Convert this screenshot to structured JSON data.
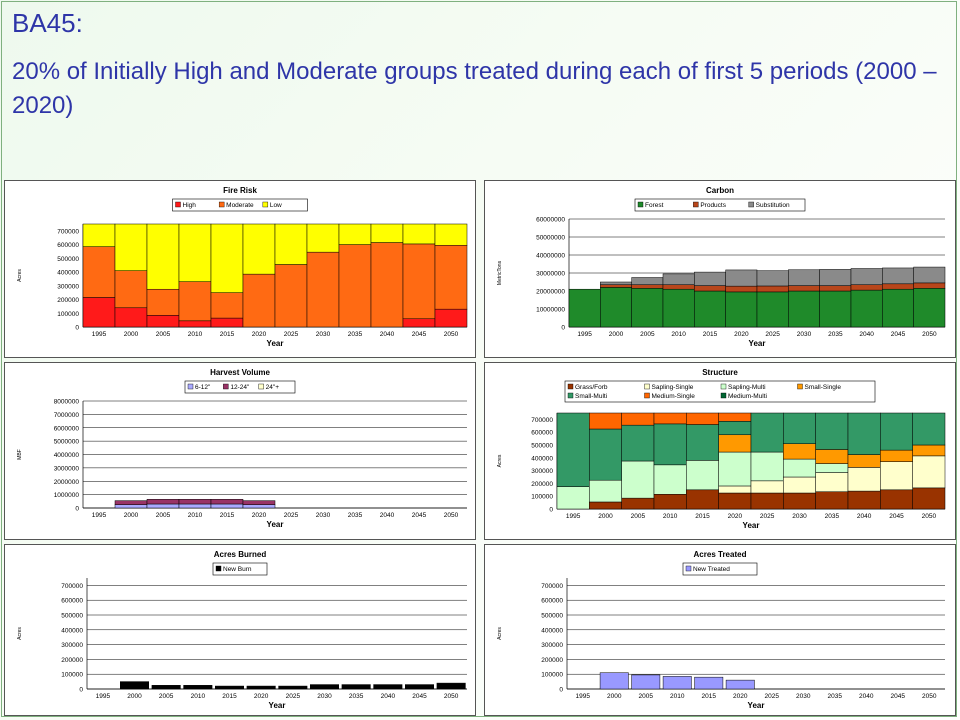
{
  "slide": {
    "title": "BA45:",
    "subtitle": "20% of Initially High and Moderate groups treated during each of first 5 periods (2000 – 2020)"
  },
  "chart_data": [
    {
      "id": "fire-risk",
      "type": "bar",
      "stacked": true,
      "title": "Fire Risk",
      "xlabel": "Year",
      "ylabel": "Acres",
      "ylim": [
        0,
        750000
      ],
      "yticks": [
        0,
        100000,
        200000,
        300000,
        400000,
        500000,
        600000,
        700000
      ],
      "grid": true,
      "legend": "top",
      "bar_gap": 0,
      "categories": [
        "1995",
        "2000",
        "2005",
        "2010",
        "2015",
        "2020",
        "2025",
        "2030",
        "2035",
        "2040",
        "2045",
        "2050"
      ],
      "series": [
        {
          "name": "High",
          "color": "#ff1a1a",
          "values": [
            215000,
            140000,
            85000,
            45000,
            65000,
            0,
            0,
            0,
            0,
            0,
            60000,
            130000
          ]
        },
        {
          "name": "Moderate",
          "color": "#ff6a13",
          "values": [
            370000,
            270000,
            190000,
            285000,
            185000,
            385000,
            455000,
            545000,
            600000,
            615000,
            545000,
            465000
          ]
        },
        {
          "name": "Low",
          "color": "#ffff00",
          "values": [
            165000,
            340000,
            475000,
            420000,
            500000,
            365000,
            295000,
            205000,
            150000,
            135000,
            145000,
            155000
          ]
        }
      ]
    },
    {
      "id": "carbon",
      "type": "bar",
      "stacked": true,
      "title": "Carbon",
      "xlabel": "Year",
      "ylabel": "MetricTons",
      "ylim": [
        0,
        60000000
      ],
      "yticks": [
        0,
        10000000,
        20000000,
        30000000,
        40000000,
        50000000,
        60000000
      ],
      "grid": true,
      "legend": "top",
      "bar_gap": 0,
      "categories": [
        "1995",
        "2000",
        "2005",
        "2010",
        "2015",
        "2020",
        "2025",
        "2030",
        "2035",
        "2040",
        "2045",
        "2050"
      ],
      "series": [
        {
          "name": "Forest",
          "color": "#1f8a2a",
          "values": [
            21000000,
            22000000,
            21500000,
            21000000,
            20000000,
            19500000,
            19500000,
            20000000,
            20000000,
            20500000,
            21000000,
            21500000
          ]
        },
        {
          "name": "Products",
          "color": "#b8461b",
          "values": [
            0,
            1500000,
            2000000,
            2500000,
            3000000,
            3200000,
            3300000,
            3000000,
            3000000,
            3000000,
            3000000,
            3000000
          ]
        },
        {
          "name": "Substitution",
          "color": "#8a8a8a",
          "values": [
            0,
            1500000,
            4000000,
            6000000,
            7500000,
            9000000,
            8500000,
            8800000,
            9000000,
            9000000,
            8800000,
            8800000
          ]
        }
      ]
    },
    {
      "id": "harvest-volume",
      "type": "bar",
      "stacked": true,
      "title": "Harvest Volume",
      "xlabel": "Year",
      "ylabel": "MBF",
      "ylim": [
        0,
        8000000
      ],
      "yticks": [
        0,
        1000000,
        2000000,
        3000000,
        4000000,
        5000000,
        6000000,
        7000000,
        8000000
      ],
      "grid": true,
      "legend": "top",
      "bar_gap": 0,
      "categories": [
        "1995",
        "2000",
        "2005",
        "2010",
        "2015",
        "2020",
        "2025",
        "2030",
        "2035",
        "2040",
        "2045",
        "2050"
      ],
      "series": [
        {
          "name": "6-12\"",
          "color": "#aaaaff",
          "values": [
            0,
            250000,
            300000,
            300000,
            300000,
            250000,
            0,
            0,
            0,
            0,
            0,
            0
          ]
        },
        {
          "name": "12-24\"",
          "color": "#993366",
          "values": [
            0,
            300000,
            350000,
            350000,
            350000,
            300000,
            0,
            0,
            0,
            0,
            0,
            0
          ]
        },
        {
          "name": "24\"+",
          "color": "#ffffcc",
          "values": [
            0,
            0,
            0,
            0,
            0,
            0,
            0,
            0,
            0,
            0,
            0,
            0
          ]
        }
      ]
    },
    {
      "id": "structure",
      "type": "bar",
      "stacked": true,
      "title": "Structure",
      "xlabel": "Year",
      "ylabel": "Acres",
      "ylim": [
        0,
        750000
      ],
      "yticks": [
        0,
        100000,
        200000,
        300000,
        400000,
        500000,
        600000,
        700000
      ],
      "grid": true,
      "legend": "top",
      "bar_gap": 0,
      "categories": [
        "1995",
        "2000",
        "2005",
        "2010",
        "2015",
        "2020",
        "2025",
        "2030",
        "2035",
        "2040",
        "2045",
        "2050"
      ],
      "series": [
        {
          "name": "Grass/Forb",
          "color": "#993300",
          "values": [
            0,
            55000,
            85000,
            115000,
            150000,
            125000,
            125000,
            125000,
            135000,
            140000,
            150000,
            165000
          ]
        },
        {
          "name": "Sapling-Single",
          "color": "#ffffcc",
          "values": [
            0,
            0,
            0,
            0,
            0,
            55000,
            95000,
            125000,
            150000,
            185000,
            220000,
            250000
          ]
        },
        {
          "name": "Sapling-Multi",
          "color": "#ccffcc",
          "values": [
            175000,
            170000,
            290000,
            230000,
            230000,
            265000,
            225000,
            140000,
            70000,
            0,
            0,
            0
          ]
        },
        {
          "name": "Small-Single",
          "color": "#ff9900",
          "values": [
            0,
            0,
            0,
            0,
            0,
            135000,
            0,
            120000,
            110000,
            100000,
            90000,
            85000
          ]
        },
        {
          "name": "Small-Multi",
          "color": "#339966",
          "values": [
            575000,
            400000,
            280000,
            320000,
            280000,
            105000,
            305000,
            240000,
            285000,
            325000,
            290000,
            250000
          ]
        },
        {
          "name": "Medium-Single",
          "color": "#ff6600",
          "values": [
            0,
            125000,
            95000,
            85000,
            90000,
            65000,
            0,
            0,
            0,
            0,
            0,
            0
          ]
        },
        {
          "name": "Medium-Multi",
          "color": "#006633",
          "values": [
            0,
            0,
            0,
            0,
            0,
            0,
            0,
            0,
            0,
            0,
            0,
            0
          ]
        }
      ]
    },
    {
      "id": "acres-burned",
      "type": "bar",
      "stacked": false,
      "title": "Acres Burned",
      "xlabel": "Year",
      "ylabel": "Acres",
      "ylim": [
        0,
        750000
      ],
      "yticks": [
        0,
        100000,
        200000,
        300000,
        400000,
        500000,
        600000,
        700000
      ],
      "grid": true,
      "legend": "top",
      "bar_gap": 0.1,
      "categories": [
        "1995",
        "2000",
        "2005",
        "2010",
        "2015",
        "2020",
        "2025",
        "2030",
        "2035",
        "2040",
        "2045",
        "2050"
      ],
      "series": [
        {
          "name": "New Burn",
          "color": "#000000",
          "values": [
            0,
            50000,
            25000,
            25000,
            20000,
            20000,
            20000,
            30000,
            30000,
            30000,
            30000,
            40000
          ]
        }
      ]
    },
    {
      "id": "acres-treated",
      "type": "bar",
      "stacked": false,
      "title": "Acres Treated",
      "xlabel": "Year",
      "ylabel": "Acres",
      "ylim": [
        0,
        750000
      ],
      "yticks": [
        0,
        100000,
        200000,
        300000,
        400000,
        500000,
        600000,
        700000
      ],
      "grid": true,
      "legend": "top",
      "bar_gap": 0.1,
      "categories": [
        "1995",
        "2000",
        "2005",
        "2010",
        "2015",
        "2020",
        "2025",
        "2030",
        "2035",
        "2040",
        "2045",
        "2050"
      ],
      "series": [
        {
          "name": "New Treated",
          "color": "#9999ff",
          "values": [
            0,
            110000,
            95000,
            85000,
            80000,
            60000,
            0,
            0,
            0,
            0,
            0,
            0
          ]
        }
      ]
    }
  ]
}
